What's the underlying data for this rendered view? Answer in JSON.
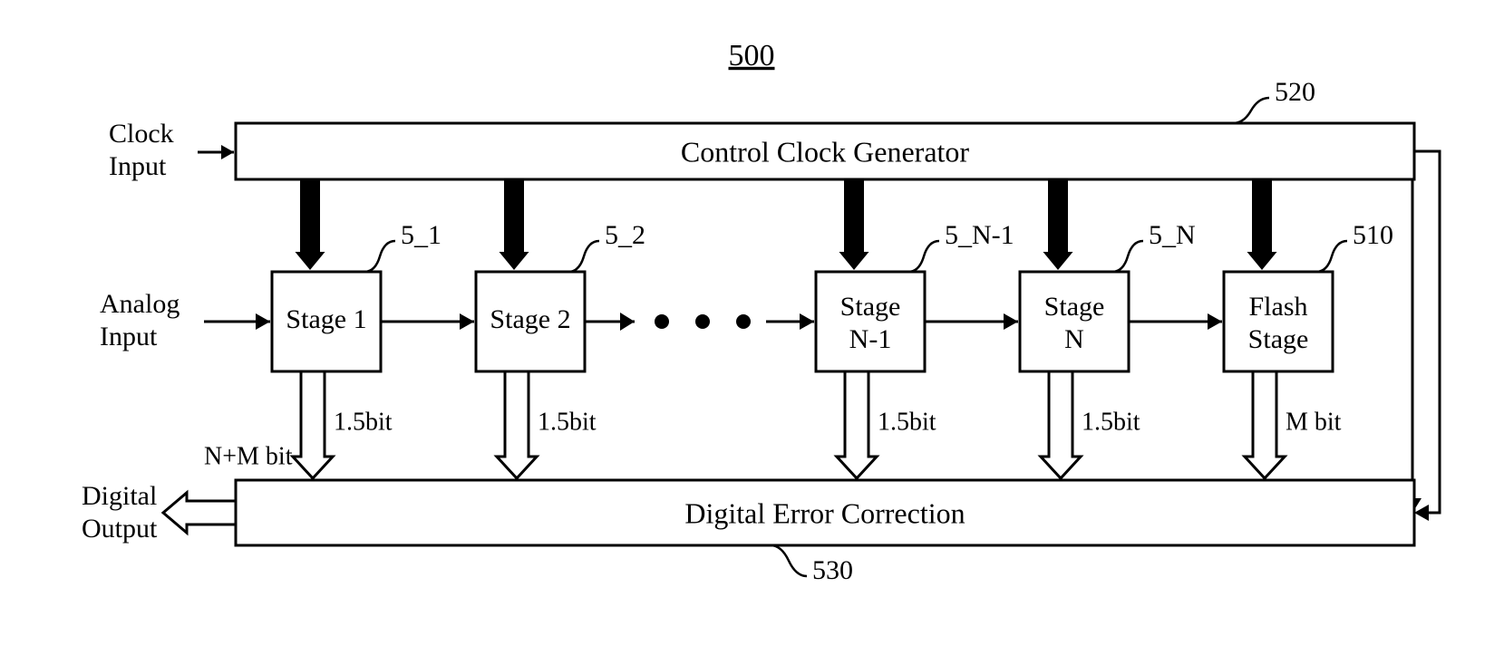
{
  "figure": {
    "type": "flowchart",
    "title": "500",
    "background_color": "#ffffff",
    "stroke_color": "#000000",
    "stroke_width": 3,
    "font_family": "Times New Roman",
    "clock_gen": {
      "label": "Control Clock Generator",
      "ref": "520",
      "input_label": "Clock\nInput",
      "fontsize": 32
    },
    "stages": [
      {
        "label": "Stage 1",
        "ref": "5_1",
        "bits": "1.5bit"
      },
      {
        "label": "Stage 2",
        "ref": "5_2",
        "bits": "1.5bit"
      },
      {
        "label": "Stage\nN-1",
        "ref": "5_N-1",
        "bits": "1.5bit"
      },
      {
        "label": "Stage\nN",
        "ref": "5_N",
        "bits": "1.5bit"
      },
      {
        "label": "Flash\nStage",
        "ref": "510",
        "bits": "M bit"
      }
    ],
    "analog_input_label": "Analog\nInput",
    "dec": {
      "label": "Digital Error Correction",
      "ref": "530",
      "output_label": "Digital\nOutput",
      "output_bits": "N+M bit",
      "fontsize": 32
    }
  }
}
